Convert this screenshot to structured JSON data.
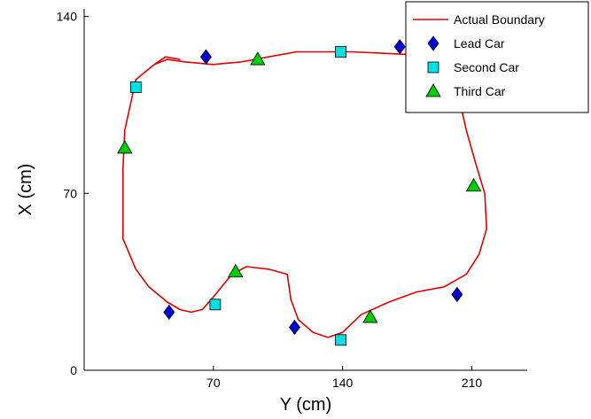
{
  "chart_data": {
    "type": "scatter",
    "xlabel": "Y (cm)",
    "ylabel": "X (cm)",
    "xlim": [
      0,
      240
    ],
    "ylim": [
      0,
      143
    ],
    "xticks": [
      70,
      140,
      210
    ],
    "yticks": [
      0,
      70,
      140
    ],
    "grid": false,
    "legend_position": "top-right",
    "boundary": {
      "name": "Actual Boundary",
      "color": "#e00000",
      "points": [
        [
          38,
          121
        ],
        [
          45,
          123
        ],
        [
          55,
          122
        ],
        [
          70,
          121
        ],
        [
          85,
          122
        ],
        [
          100,
          124
        ],
        [
          115,
          126
        ],
        [
          130,
          126
        ],
        [
          145,
          126
        ],
        [
          160,
          125.5
        ],
        [
          175,
          125
        ],
        [
          190,
          124
        ],
        [
          200,
          121
        ],
        [
          203,
          108
        ],
        [
          207,
          95
        ],
        [
          212,
          82
        ],
        [
          217,
          70
        ],
        [
          218,
          56
        ],
        [
          214,
          46
        ],
        [
          207,
          38
        ],
        [
          195,
          33
        ],
        [
          180,
          31
        ],
        [
          165,
          27
        ],
        [
          150,
          22
        ],
        [
          140,
          15
        ],
        [
          132,
          13
        ],
        [
          124,
          15
        ],
        [
          116,
          20
        ],
        [
          112,
          28
        ],
        [
          110,
          38
        ],
        [
          100,
          40
        ],
        [
          88,
          41
        ],
        [
          80,
          38
        ],
        [
          70,
          29
        ],
        [
          64,
          24
        ],
        [
          58,
          23
        ],
        [
          52,
          24
        ],
        [
          45,
          27
        ],
        [
          35,
          33
        ],
        [
          28,
          40
        ],
        [
          21,
          52
        ],
        [
          21,
          65
        ],
        [
          21,
          80
        ],
        [
          22,
          95
        ],
        [
          25,
          105
        ],
        [
          28,
          115
        ],
        [
          33,
          118
        ],
        [
          38,
          121
        ],
        [
          44,
          124
        ],
        [
          52,
          123
        ]
      ]
    },
    "series": [
      {
        "name": "Lead Car",
        "marker": "diamond",
        "color": "#0000cc",
        "points": [
          [
            46,
            23
          ],
          [
            66,
            124
          ],
          [
            114,
            17
          ],
          [
            171,
            128
          ],
          [
            202,
            30
          ]
        ]
      },
      {
        "name": "Second Car",
        "marker": "square",
        "color": "#00e0e0",
        "points": [
          [
            28,
            112
          ],
          [
            71,
            26
          ],
          [
            139,
            12
          ],
          [
            139,
            126
          ]
        ]
      },
      {
        "name": "Third Car",
        "marker": "triangle",
        "color": "#00cc00",
        "points": [
          [
            22,
            88
          ],
          [
            82,
            39
          ],
          [
            94,
            123
          ],
          [
            155,
            21
          ],
          [
            211,
            73
          ]
        ]
      }
    ]
  }
}
